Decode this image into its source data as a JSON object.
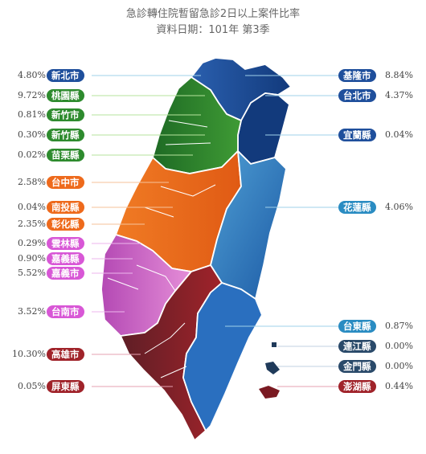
{
  "chart_data": {
    "type": "choropleth-map",
    "title": "急診轉住院暫留急診2日以上案件比率",
    "subtitle": "資料日期：101年 第3季",
    "unit": "%",
    "regions": [
      {
        "name": "新北市",
        "value": "4.80%",
        "side": "left",
        "color": "#1f4f9c"
      },
      {
        "name": "桃園縣",
        "value": "9.72%",
        "side": "left",
        "color": "#2e8b2e"
      },
      {
        "name": "新竹市",
        "value": "0.81%",
        "side": "left",
        "color": "#2e8b2e"
      },
      {
        "name": "新竹縣",
        "value": "0.30%",
        "side": "left",
        "color": "#2e8b2e"
      },
      {
        "name": "苗栗縣",
        "value": "0.02%",
        "side": "left",
        "color": "#2e8b2e"
      },
      {
        "name": "台中市",
        "value": "2.58%",
        "side": "left",
        "color": "#ee6a1c"
      },
      {
        "name": "南投縣",
        "value": "0.04%",
        "side": "left",
        "color": "#ee6a1c"
      },
      {
        "name": "彰化縣",
        "value": "2.35%",
        "side": "left",
        "color": "#ee6a1c"
      },
      {
        "name": "雲林縣",
        "value": "0.29%",
        "side": "left",
        "color": "#d857d6"
      },
      {
        "name": "嘉義縣",
        "value": "0.90%",
        "side": "left",
        "color": "#d857d6"
      },
      {
        "name": "嘉義市",
        "value": "5.52%",
        "side": "left",
        "color": "#d857d6"
      },
      {
        "name": "台南市",
        "value": "3.52%",
        "side": "left",
        "color": "#d857d6"
      },
      {
        "name": "高雄市",
        "value": "10.30%",
        "side": "left",
        "color": "#a0232a"
      },
      {
        "name": "屏東縣",
        "value": "0.05%",
        "side": "left",
        "color": "#a0232a"
      },
      {
        "name": "基隆市",
        "value": "8.84%",
        "side": "right",
        "color": "#1f4f9c"
      },
      {
        "name": "台北市",
        "value": "4.37%",
        "side": "right",
        "color": "#1f4f9c"
      },
      {
        "name": "宜蘭縣",
        "value": "0.04%",
        "side": "right",
        "color": "#1f4f9c"
      },
      {
        "name": "花蓮縣",
        "value": "4.06%",
        "side": "right",
        "color": "#2a8cc2"
      },
      {
        "name": "台東縣",
        "value": "0.87%",
        "side": "right",
        "color": "#2a8cc2"
      },
      {
        "name": "連江縣",
        "value": "0.00%",
        "side": "right",
        "color": "#2a4a6a"
      },
      {
        "name": "金門縣",
        "value": "0.00%",
        "side": "right",
        "color": "#2a4a6a"
      },
      {
        "name": "澎湖縣",
        "value": "0.44%",
        "side": "right",
        "color": "#a0232a"
      }
    ]
  }
}
